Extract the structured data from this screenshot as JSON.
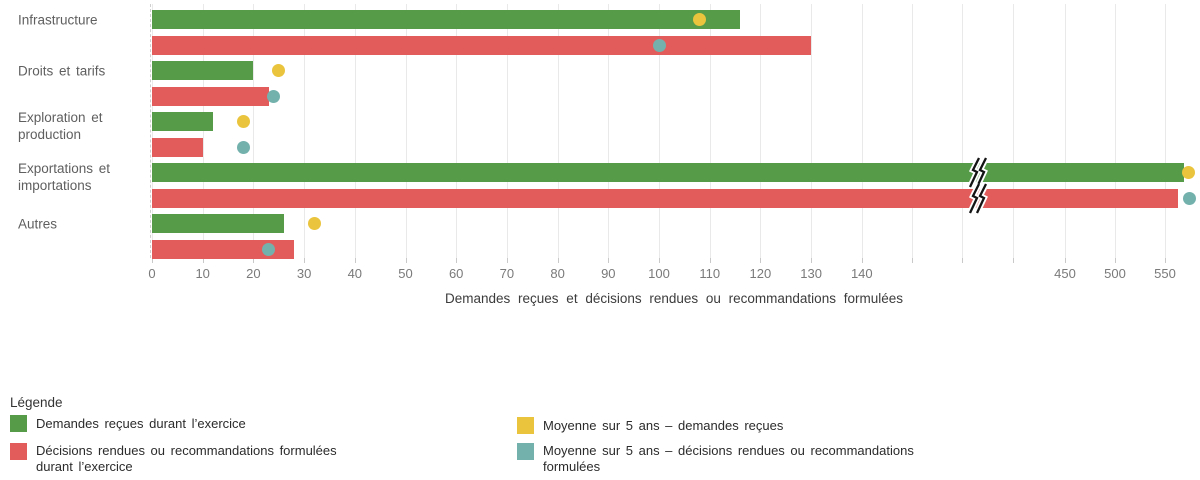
{
  "chart_data": {
    "type": "bar",
    "orientation": "horizontal",
    "xlabel": "Demandes reçues et décisions rendues ou recommandations formulées",
    "categories": [
      "Infrastructure",
      "Droits et tarifs",
      "Exploration et\nproduction",
      "Exportations et\nimportations",
      "Autres"
    ],
    "series": [
      {
        "name": "Demandes reçues durant l’exercice",
        "type": "bar",
        "color": "#559b48",
        "values": [
          116,
          20,
          12,
          569,
          26
        ]
      },
      {
        "name": "Décisions rendues ou recommandations formulées durant l’exercice",
        "type": "bar",
        "color": "#e25c5c",
        "values": [
          130,
          23,
          10,
          563,
          28
        ]
      },
      {
        "name": "Moyenne sur 5 ans – demandes reçues",
        "type": "point",
        "color": "#eac43c",
        "values": [
          108,
          25,
          18,
          573,
          32
        ]
      },
      {
        "name": "Moyenne sur 5 ans – décisions rendues ou recommandations formulées",
        "type": "point",
        "color": "#73b1ad",
        "values": [
          100,
          24,
          18,
          574,
          23
        ]
      }
    ],
    "x_ticks_left": [
      0,
      10,
      20,
      30,
      40,
      50,
      60,
      70,
      80,
      90,
      100,
      110,
      120,
      130,
      140
    ],
    "x_ticks_right": [
      450,
      500,
      550
    ],
    "axis_break": {
      "between": [
        140,
        450
      ],
      "broken_category": "Exportations et\nimportations"
    },
    "grid": true,
    "legend_position": "bottom"
  },
  "legend": {
    "title": "Légende",
    "items": [
      {
        "label": "Demandes reçues durant l’exercice",
        "color": "#559b48"
      },
      {
        "label": "Décisions rendues ou recommandations formulées\ndurant l’exercice",
        "color": "#e25c5c"
      },
      {
        "label": "Moyenne sur 5 ans – demandes reçues",
        "color": "#eac43c"
      },
      {
        "label": "Moyenne sur 5 ans – décisions rendues ou recommandations\nformulées",
        "color": "#73b1ad"
      }
    ]
  }
}
